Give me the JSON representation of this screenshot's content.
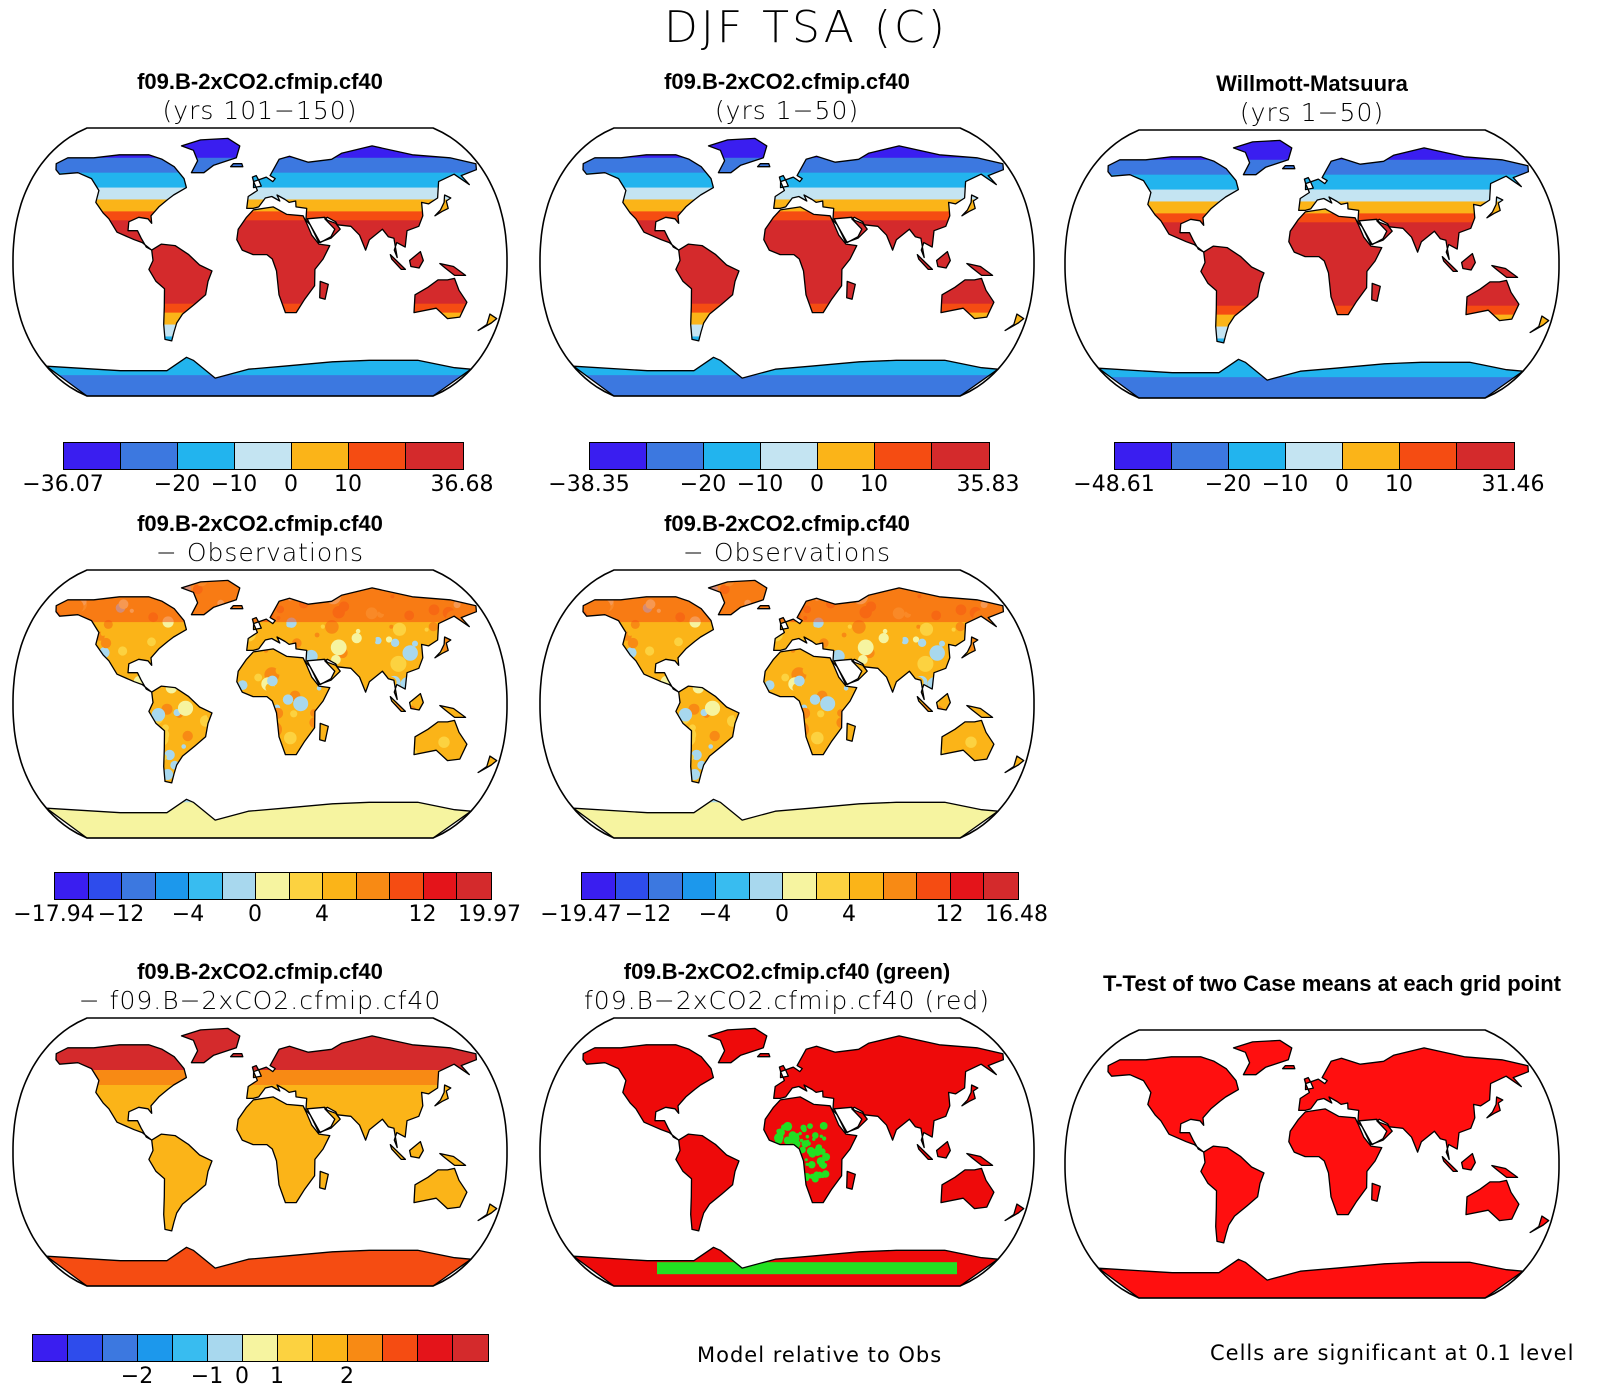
{
  "title": "DJF TSA (C)",
  "rows": [
    {
      "panels": [
        {
          "line1": "f09.B-2xCO2.cfmip.cf40",
          "line2": "(yrs 101−150)",
          "scheme": "abs1",
          "cb_labels": [
            "−36.07",
            "−20",
            "−10",
            "0",
            "10",
            "36.68"
          ]
        },
        {
          "line1": "f09.B-2xCO2.cfmip.cf40",
          "line2": "(yrs 1−50)",
          "scheme": "abs2",
          "cb_labels": [
            "−38.35",
            "−20",
            "−10",
            "0",
            "10",
            "35.83"
          ]
        },
        {
          "line1": "Willmott-Matsuura",
          "line2": "(yrs 1−50)",
          "scheme": "abs3",
          "cb_labels": [
            "−48.61",
            "−20",
            "−10",
            "0",
            "10",
            "31.46"
          ]
        }
      ]
    },
    {
      "panels": [
        {
          "line1": "f09.B-2xCO2.cfmip.cf40",
          "line2": "− Observations",
          "scheme": "diff1",
          "cb_labels": [
            "−17.94",
            "−12",
            "−4",
            "0",
            "4",
            "12",
            "19.97"
          ]
        },
        {
          "line1": "f09.B-2xCO2.cfmip.cf40",
          "line2": "− Observations",
          "scheme": "diff2",
          "cb_labels": [
            "−19.47",
            "−12",
            "−4",
            "0",
            "4",
            "12",
            "16.48"
          ]
        }
      ]
    },
    {
      "panels": [
        {
          "line1": "f09.B-2xCO2.cfmip.cf40",
          "line2": "− f09.B−2xCO2.cfmip.cf40",
          "scheme": "case",
          "cb_labels": [
            "−2",
            "−1",
            "0",
            "1",
            "2"
          ]
        },
        {
          "line1": "f09.B-2xCO2.cfmip.cf40 (green)",
          "line2": "f09.B−2xCO2.cfmip.cf40 (red)",
          "scheme": "rel"
        },
        {
          "line1": "T-Test of two Case means at each grid point",
          "line2": "",
          "scheme": "ttest"
        }
      ]
    }
  ],
  "notes": {
    "model_relative": "Model relative to Obs",
    "significance": "Cells are significant at 0.1 level"
  },
  "colors": {
    "abs_bar": [
      "#3a1ef0",
      "#3c78e0",
      "#22b4ee",
      "#c4e4f2",
      "#fbb418",
      "#f54c12",
      "#d42a2c"
    ],
    "diff_bar": [
      "#3a1ef0",
      "#2e4cec",
      "#3c78e0",
      "#1c98ec",
      "#38bcf0",
      "#a8d8ee",
      "#f6f4a0",
      "#fcd240",
      "#fbb418",
      "#f88a14",
      "#f54c12",
      "#e4141a",
      "#d42a2c"
    ],
    "case_bar": [
      "#3a1ef0",
      "#2e4cec",
      "#3c78e0",
      "#1c98ec",
      "#38bcf0",
      "#a8d8ee",
      "#f6f4a0",
      "#fcd240",
      "#fbb418",
      "#f88a14",
      "#f54c12",
      "#e4141a",
      "#d42a2c"
    ],
    "rel_red": "#ee0a0a",
    "rel_green": "#22e022",
    "ttest_red": "#ff0f0f"
  }
}
